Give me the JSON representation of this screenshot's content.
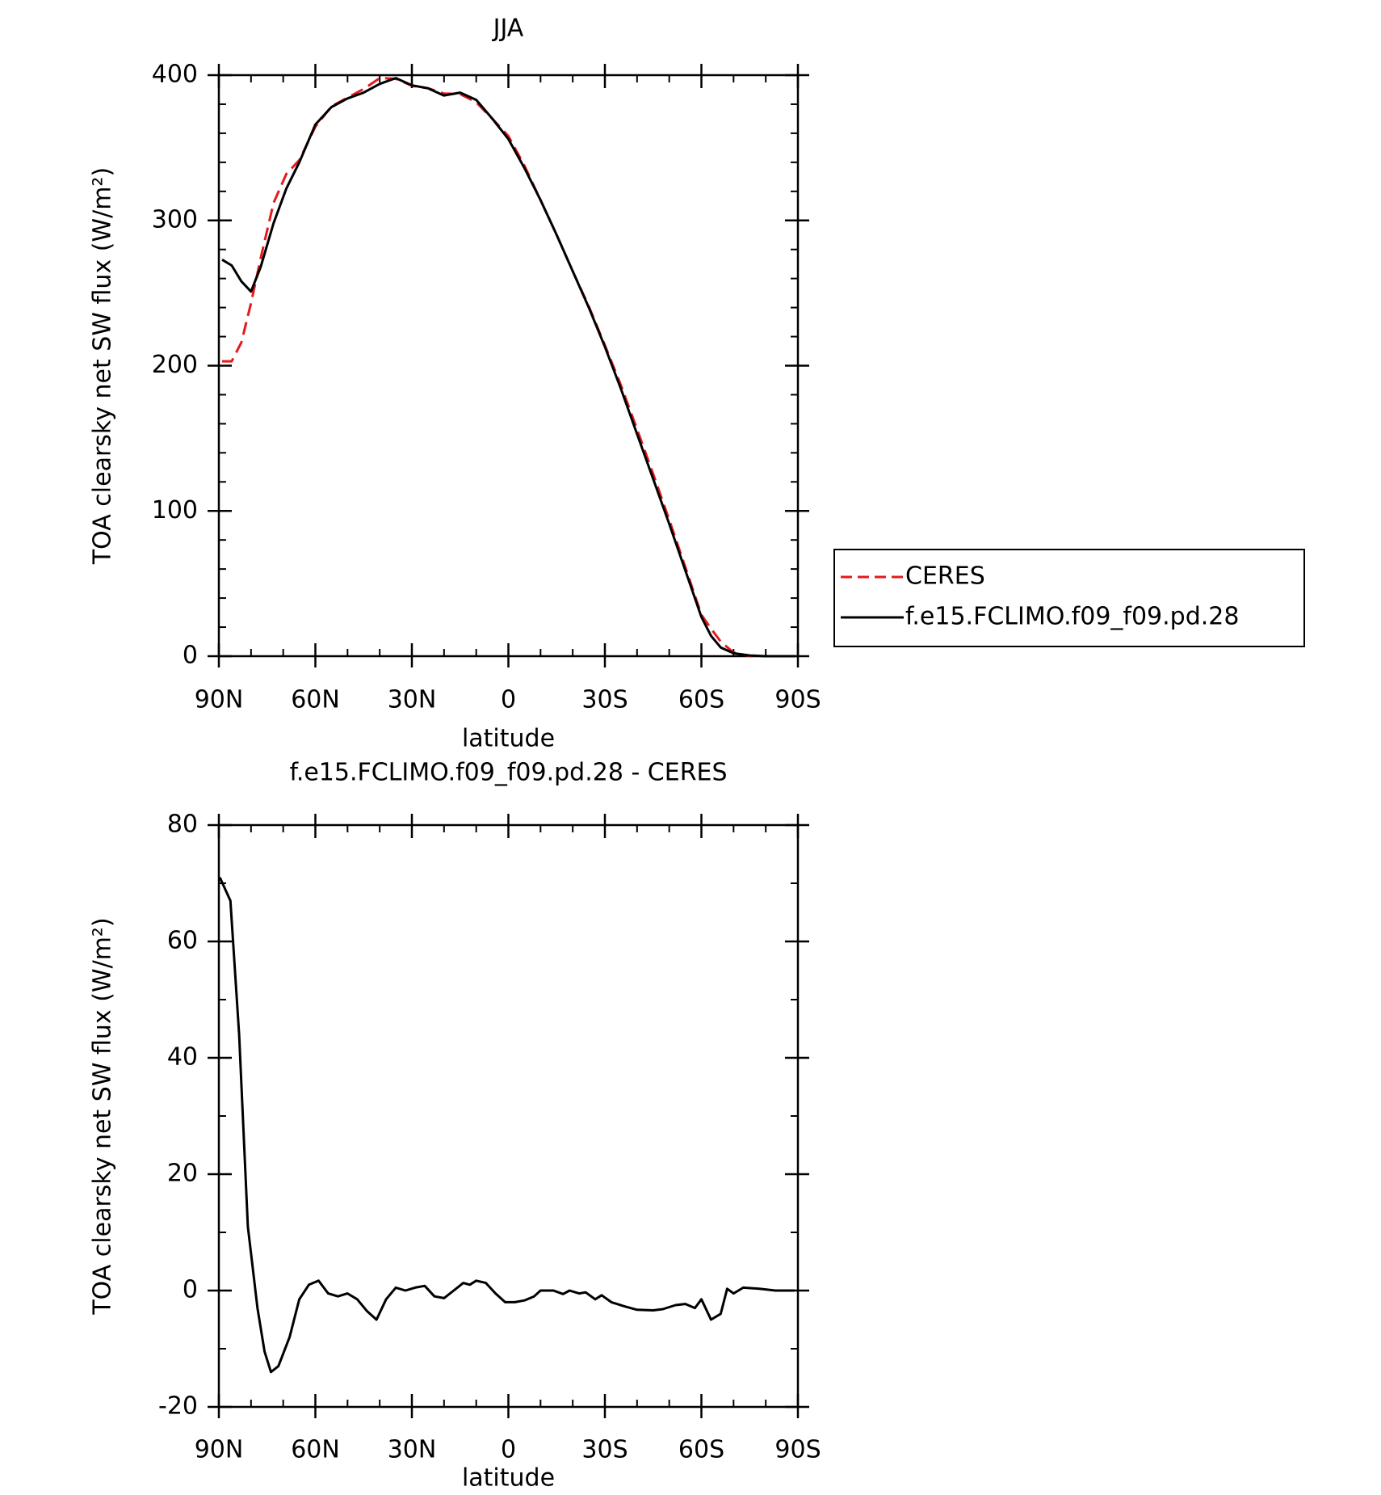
{
  "chart_data": [
    {
      "type": "line",
      "title": "JJA",
      "xlabel": "latitude",
      "ylabel": "TOA clearsky net SW flux (W/m²)",
      "x": [
        89,
        86,
        83,
        80,
        77,
        73,
        69,
        65,
        60,
        55,
        50,
        45,
        40,
        35,
        30,
        25,
        20,
        15,
        10,
        5,
        0,
        -5,
        -10,
        -15,
        -20,
        -25,
        -30,
        -35,
        -40,
        -45,
        -50,
        -55,
        -60,
        -63,
        -66,
        -70,
        -75,
        -80,
        -85,
        -89
      ],
      "series": [
        {
          "name": "CERES",
          "color": "#e41a1c",
          "dashed": true,
          "values": [
            203,
            203,
            216,
            243,
            274,
            312,
            332,
            341.5,
            364.5,
            378.5,
            384.5,
            390.5,
            398,
            397.5,
            392.7,
            391,
            387.3,
            387,
            381.3,
            370,
            358,
            337.7,
            314,
            290,
            265,
            240.8,
            214,
            186.5,
            156.3,
            125.4,
            93.8,
            61.3,
            28.5,
            19,
            10,
            2.5,
            0.1,
            0,
            0,
            0
          ]
        },
        {
          "name": "f.e15.FCLIMO.f09_f09.pd.28",
          "color": "#000000",
          "dashed": false,
          "values": [
            273,
            269,
            258,
            251,
            268,
            298,
            322,
            340,
            366,
            378,
            384,
            388,
            394,
            398,
            393,
            391,
            386,
            388,
            383,
            370,
            356,
            336,
            314,
            290,
            265,
            240,
            213,
            184,
            153,
            122,
            91,
            59,
            27,
            14,
            6,
            2,
            0.5,
            0,
            0,
            0
          ]
        }
      ],
      "xlim": [
        90,
        -90
      ],
      "xticks": [
        {
          "value": 90,
          "label": "90N"
        },
        {
          "value": 60,
          "label": "60N"
        },
        {
          "value": 30,
          "label": "30N"
        },
        0,
        {
          "value": -30,
          "label": "30S"
        },
        {
          "value": -60,
          "label": "60S"
        },
        {
          "value": -90,
          "label": "90S"
        }
      ],
      "xminorticks": [
        80,
        70,
        50,
        40,
        20,
        10,
        -10,
        -20,
        -40,
        -50,
        -70,
        -80
      ],
      "ylim": [
        0,
        400
      ],
      "yticks": [
        0,
        100,
        200,
        300,
        400
      ],
      "yminorticks": [
        20,
        40,
        60,
        80,
        120,
        140,
        160,
        180,
        220,
        240,
        260,
        280,
        320,
        340,
        360,
        380
      ],
      "legend": "right"
    },
    {
      "type": "line",
      "title": "f.e15.FCLIMO.f09_f09.pd.28 - CERES",
      "xlabel": "latitude",
      "ylabel": "TOA clearsky net SW flux (W/m²)",
      "x": [
        89.7,
        86.4,
        83.7,
        81,
        78,
        75.8,
        73.8,
        71.5,
        68,
        65,
        62,
        59,
        56,
        53,
        50,
        47,
        44,
        41,
        38,
        35,
        32,
        29,
        26,
        23,
        20,
        17,
        14,
        12,
        10,
        7,
        4,
        1,
        -2,
        -5,
        -8,
        -10,
        -14,
        -17,
        -19,
        -22,
        -24,
        -27,
        -29,
        -32,
        -36,
        -40,
        -45,
        -48,
        -52,
        -55,
        -58,
        -60,
        -63,
        -66,
        -68,
        -70,
        -73,
        -78,
        -83,
        -89
      ],
      "series": [
        {
          "name": "f.e15.FCLIMO.f09_f09.pd.28 - CERES",
          "color": "#000000",
          "dashed": false,
          "values": [
            71,
            67,
            44,
            11,
            -3,
            -10.5,
            -14,
            -13,
            -8,
            -1.5,
            1,
            1.7,
            -0.5,
            -1,
            -0.5,
            -1.5,
            -3.5,
            -5,
            -1.5,
            0.5,
            0,
            0.5,
            0.8,
            -1,
            -1.3,
            0,
            1.3,
            1,
            1.7,
            1.3,
            -0.5,
            -2,
            -2,
            -1.7,
            -1,
            0,
            0,
            -0.6,
            0,
            -0.5,
            -0.3,
            -1.5,
            -0.8,
            -2,
            -2.7,
            -3.3,
            -3.4,
            -3.2,
            -2.5,
            -2.3,
            -3,
            -1.5,
            -5,
            -4,
            0.3,
            -0.5,
            0.5,
            0.3,
            0,
            0
          ]
        }
      ],
      "xlim": [
        90,
        -90
      ],
      "xticks": [
        {
          "value": 90,
          "label": "90N"
        },
        {
          "value": 60,
          "label": "60N"
        },
        {
          "value": 30,
          "label": "30N"
        },
        0,
        {
          "value": -30,
          "label": "30S"
        },
        {
          "value": -60,
          "label": "60S"
        },
        {
          "value": -90,
          "label": "90S"
        }
      ],
      "xminorticks": [
        80,
        70,
        50,
        40,
        20,
        10,
        -10,
        -20,
        -40,
        -50,
        -70,
        -80
      ],
      "ylim": [
        -20,
        80
      ],
      "yticks": [
        -20,
        0,
        20,
        40,
        60,
        80
      ],
      "yminorticks": [
        -10,
        10,
        30,
        50,
        70
      ]
    }
  ]
}
